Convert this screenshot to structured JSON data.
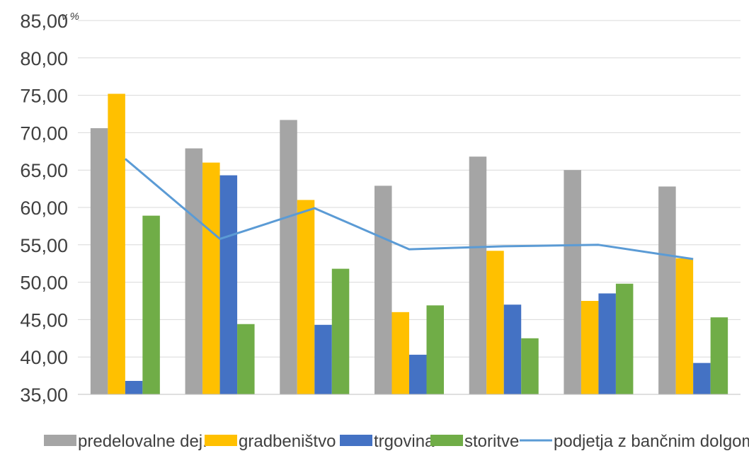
{
  "chart_data": {
    "type": "bar",
    "categories": [
      "",
      "",
      "",
      "",
      "",
      "",
      ""
    ],
    "unit_label": "v %",
    "ylim": [
      35,
      85
    ],
    "y_ticks": [
      "35,00",
      "40,00",
      "45,00",
      "50,00",
      "55,00",
      "60,00",
      "65,00",
      "70,00",
      "75,00",
      "80,00",
      "85,00"
    ],
    "grid": true,
    "legend_position": "bottom",
    "series": [
      {
        "name": "predelovalne dej.",
        "color": "#a5a5a5",
        "values": [
          70.6,
          67.9,
          71.7,
          62.9,
          66.8,
          65.0,
          62.8
        ]
      },
      {
        "name": "gradbeništvo",
        "color": "#ffc000",
        "values": [
          75.2,
          66.0,
          61.0,
          46.0,
          54.2,
          47.5,
          53.2
        ]
      },
      {
        "name": "trgovina",
        "color": "#4472c4",
        "values": [
          36.8,
          64.3,
          44.3,
          40.3,
          47.0,
          48.5,
          39.2
        ]
      },
      {
        "name": "storitve",
        "color": "#70ad47",
        "values": [
          58.9,
          44.4,
          51.8,
          46.9,
          42.5,
          49.8,
          45.3
        ]
      }
    ],
    "line_series": {
      "name": "podjetja z bančnim dolgom",
      "color": "#5b9bd5",
      "values": [
        66.5,
        55.8,
        59.9,
        54.4,
        54.8,
        55.0,
        53.1
      ]
    }
  }
}
